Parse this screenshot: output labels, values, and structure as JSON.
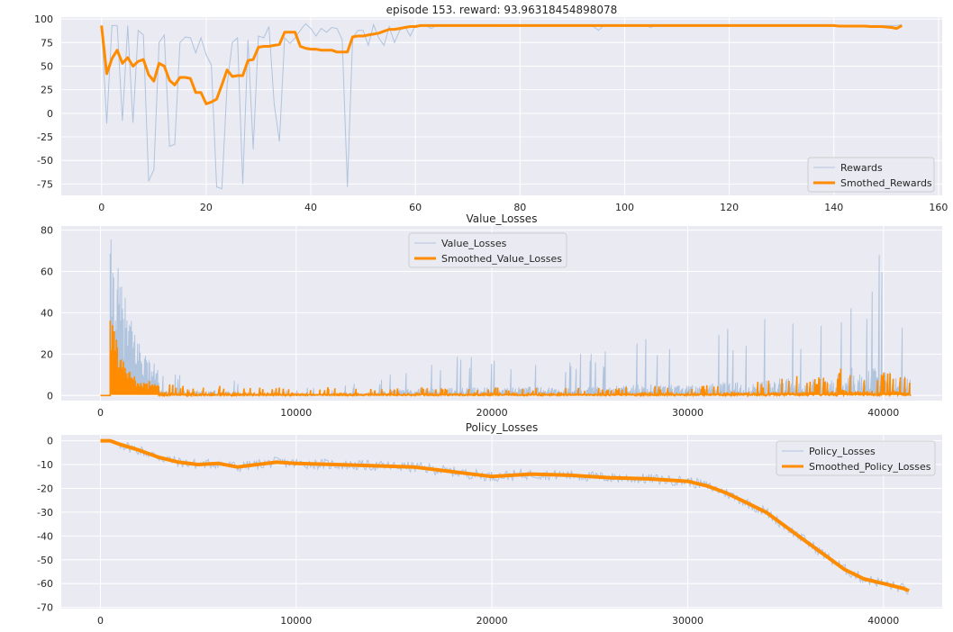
{
  "colors": {
    "axes_bg": "#eaeaf2",
    "grid": "#ffffff",
    "raw_series": "#b0c4de",
    "smoothed_series": "#ff8c00",
    "text": "#262626"
  },
  "chart_data": [
    {
      "type": "line",
      "title": "episode 153. reward: 93.96318454898078",
      "xlabel": "",
      "ylabel": "",
      "xlim": [
        -7.7,
        160.7
      ],
      "ylim": [
        -87,
        102
      ],
      "xticks": [
        0,
        20,
        40,
        60,
        80,
        100,
        120,
        140,
        160
      ],
      "yticks": [
        -75,
        -50,
        -25,
        0,
        25,
        50,
        75,
        100
      ],
      "grid": true,
      "legend": "bottom-right",
      "series": [
        {
          "name": "Rewards",
          "style": "raw",
          "x": [
            0,
            1,
            2,
            3,
            4,
            5,
            6,
            7,
            8,
            9,
            10,
            11,
            12,
            13,
            14,
            15,
            16,
            17,
            18,
            19,
            20,
            21,
            22,
            23,
            24,
            25,
            26,
            27,
            28,
            29,
            30,
            31,
            32,
            33,
            34,
            35,
            36,
            37,
            38,
            39,
            40,
            41,
            42,
            43,
            44,
            45,
            46,
            47,
            48,
            49,
            50,
            51,
            52,
            53,
            54,
            55,
            56,
            57,
            58,
            59,
            60,
            61,
            62,
            63,
            64,
            65,
            66,
            67,
            68,
            69,
            70,
            71,
            72,
            73,
            74,
            75,
            76,
            77,
            78,
            79,
            80,
            81,
            82,
            83,
            84,
            85,
            86,
            87,
            88,
            89,
            90,
            91,
            92,
            93,
            94,
            95,
            96,
            97,
            98,
            99,
            100,
            101,
            102,
            103,
            104,
            105,
            106,
            107,
            108,
            109,
            110,
            111,
            112,
            113,
            114,
            115,
            116,
            117,
            118,
            119,
            120,
            121,
            122,
            123,
            124,
            125,
            126,
            127,
            128,
            129,
            130,
            131,
            132,
            133,
            134,
            135,
            136,
            137,
            138,
            139,
            140,
            141,
            142,
            143,
            144,
            145,
            146,
            147,
            148,
            149,
            150,
            151,
            152,
            153
          ],
          "y": [
            93,
            -11,
            93,
            93,
            -8,
            93,
            -10,
            88,
            83,
            -72,
            -60,
            75,
            83,
            -35,
            -33,
            75,
            81,
            80,
            64,
            80,
            62,
            51,
            -78,
            -80,
            30,
            75,
            80,
            -75,
            78,
            -38,
            82,
            80,
            92,
            10,
            -30,
            80,
            74,
            80,
            88,
            95,
            90,
            82,
            90,
            86,
            91,
            90,
            78,
            -78,
            80,
            88,
            88,
            72,
            94,
            80,
            72,
            92,
            75,
            88,
            92,
            82,
            93,
            93,
            93,
            90,
            93,
            93,
            93,
            93,
            93,
            93,
            93,
            93,
            93,
            93,
            93,
            93,
            93,
            92,
            93,
            93,
            93,
            93,
            93,
            93,
            93,
            93,
            93,
            93,
            93,
            93,
            93,
            93,
            93,
            93,
            92,
            88,
            93,
            93,
            93,
            93,
            93,
            93,
            93,
            93,
            93,
            91,
            93,
            93,
            93,
            93,
            93,
            93,
            93,
            93,
            93,
            93,
            93,
            93,
            93,
            93,
            93,
            93,
            93,
            93,
            93,
            93,
            93,
            93,
            93,
            93,
            93,
            93,
            93,
            93,
            93,
            93,
            93,
            93,
            93,
            93,
            93,
            93,
            93,
            93,
            93,
            93,
            93,
            93,
            93,
            93,
            93,
            93,
            93,
            94
          ]
        },
        {
          "name": "Smothed_Rewards",
          "style": "smoothed",
          "x": [
            0,
            1,
            2,
            3,
            4,
            5,
            6,
            7,
            8,
            9,
            10,
            11,
            12,
            13,
            14,
            15,
            16,
            17,
            18,
            19,
            20,
            21,
            22,
            23,
            24,
            25,
            26,
            27,
            28,
            29,
            30,
            31,
            32,
            33,
            34,
            35,
            36,
            37,
            38,
            39,
            40,
            41,
            42,
            43,
            44,
            45,
            46,
            47,
            48,
            49,
            50,
            51,
            52,
            53,
            54,
            55,
            56,
            57,
            58,
            59,
            60,
            61,
            62,
            63,
            64,
            65,
            66,
            67,
            68,
            69,
            70,
            71,
            72,
            73,
            74,
            75,
            76,
            77,
            78,
            79,
            80,
            81,
            82,
            83,
            84,
            85,
            86,
            87,
            88,
            89,
            90,
            91,
            92,
            93,
            94,
            95,
            96,
            97,
            98,
            99,
            100,
            101,
            102,
            103,
            104,
            105,
            106,
            107,
            108,
            109,
            110,
            111,
            112,
            113,
            114,
            115,
            116,
            117,
            118,
            119,
            120,
            121,
            122,
            123,
            124,
            125,
            126,
            127,
            128,
            129,
            130,
            131,
            132,
            133,
            134,
            135,
            136,
            137,
            138,
            139,
            140,
            141,
            142,
            143,
            144,
            145,
            146,
            147,
            148,
            149,
            150,
            151,
            152,
            153
          ],
          "y": [
            93,
            42,
            58,
            67,
            53,
            59,
            50,
            55,
            57,
            41,
            34,
            53,
            50,
            35,
            30,
            38,
            38,
            37,
            22,
            22,
            10,
            12,
            15,
            30,
            46,
            39,
            40,
            40,
            56,
            57,
            70,
            71,
            71,
            72,
            73,
            86,
            86,
            86,
            71,
            69,
            68,
            68,
            67,
            67,
            67,
            65,
            65,
            65,
            81,
            82,
            82,
            83,
            84,
            85,
            87,
            89,
            89,
            90,
            91,
            92,
            92,
            93,
            93,
            93,
            93,
            93,
            93,
            93,
            93,
            93,
            93,
            93,
            93,
            93,
            93,
            93,
            93,
            93,
            93,
            93,
            93,
            93,
            93,
            93,
            93,
            93,
            93,
            93,
            93,
            93,
            93,
            93,
            93,
            93,
            93,
            93,
            93,
            93,
            93,
            93,
            93,
            93,
            93,
            93,
            93,
            93,
            93,
            93,
            93,
            93,
            93,
            93,
            93,
            93,
            93,
            93,
            93,
            93,
            93,
            93,
            93,
            93,
            93,
            93,
            93,
            93,
            93,
            93,
            93,
            93,
            93,
            93,
            93,
            93,
            93,
            93,
            93,
            93,
            93,
            93,
            93,
            92.5,
            92.5,
            92.5,
            92.5,
            92.5,
            92.5,
            92,
            92,
            92,
            91.5,
            91,
            90,
            93
          ]
        }
      ]
    },
    {
      "type": "line",
      "title": "Value_Losses",
      "xlabel": "",
      "ylabel": "",
      "xlim": [
        -2000,
        43000
      ],
      "ylim": [
        -2.5,
        82
      ],
      "xticks": [
        0,
        10000,
        20000,
        30000,
        40000
      ],
      "yticks": [
        0,
        20,
        40,
        60,
        80
      ],
      "grid": true,
      "legend": "upper center",
      "series": [
        {
          "name": "Value_Losses",
          "style": "raw-envelope",
          "x": [
            0,
            400,
            500,
            1000,
            1500,
            2000,
            2500,
            3000,
            3500,
            4000,
            5000,
            6000,
            6500,
            7000,
            8000,
            10000,
            12000,
            14000,
            15000,
            16000,
            18000,
            20000,
            22000,
            24000,
            26000,
            27000,
            28000,
            30000,
            31000,
            32000,
            33000,
            34000,
            35000,
            36000,
            37000,
            38000,
            38500,
            39000,
            39500,
            40000,
            40500,
            41000,
            41400
          ],
          "y": [
            0,
            0,
            78,
            58,
            40,
            28,
            18,
            14,
            11,
            13,
            15,
            14,
            11,
            6,
            4,
            4,
            4,
            8,
            14,
            18,
            20,
            20,
            22,
            20,
            22,
            26,
            28,
            28,
            30,
            34,
            36,
            40,
            42,
            40,
            44,
            56,
            72,
            66,
            66,
            74,
            68,
            50,
            40
          ]
        },
        {
          "name": "Smoothed_Value_Losses",
          "style": "smoothed-envelope",
          "x": [
            0,
            400,
            500,
            800,
            1000,
            1500,
            2000,
            3000,
            5000,
            10000,
            15000,
            20000,
            25000,
            30000,
            32000,
            34000,
            35000,
            36000,
            37000,
            38000,
            39000,
            40000,
            41000,
            41400
          ],
          "y": [
            0,
            0,
            38,
            30,
            20,
            12,
            8,
            6,
            5,
            4,
            4,
            4,
            4,
            5,
            6,
            7,
            10,
            9,
            10,
            14,
            11,
            12,
            10,
            7
          ]
        }
      ]
    },
    {
      "type": "line",
      "title": "Policy_Losses",
      "xlabel": "",
      "ylabel": "",
      "xlim": [
        -2000,
        43000
      ],
      "ylim": [
        -70.5,
        2.5
      ],
      "xticks": [
        0,
        10000,
        20000,
        30000,
        40000
      ],
      "yticks": [
        0,
        -10,
        -20,
        -30,
        -40,
        -50,
        -60,
        -70
      ],
      "grid": true,
      "legend": "top-right",
      "series": [
        {
          "name": "Policy_Losses",
          "style": "raw",
          "x": [
            0,
            500,
            1000,
            2000,
            3000,
            4000,
            5000,
            6000,
            7000,
            8000,
            9000,
            10000,
            12000,
            14000,
            16000,
            18000,
            20000,
            22000,
            24000,
            26000,
            28000,
            30000,
            31000,
            32000,
            33000,
            34000,
            35000,
            36000,
            37000,
            38000,
            39000,
            40000,
            41000,
            41300
          ],
          "y": [
            0,
            0,
            -1.5,
            -4,
            -7,
            -9,
            -10,
            -9.5,
            -11,
            -10,
            -9,
            -9.5,
            -10,
            -10.5,
            -11,
            -13,
            -15,
            -14,
            -14.5,
            -15.5,
            -16,
            -17,
            -19,
            -22,
            -26,
            -30,
            -36,
            -42,
            -48,
            -54,
            -58,
            -60,
            -62,
            -63
          ]
        },
        {
          "name": "Smoothed_Policy_Losses",
          "style": "smoothed",
          "x": [
            0,
            500,
            1000,
            2000,
            3000,
            4000,
            5000,
            6000,
            7000,
            8000,
            9000,
            10000,
            12000,
            14000,
            16000,
            18000,
            20000,
            22000,
            24000,
            26000,
            28000,
            30000,
            31000,
            32000,
            33000,
            34000,
            35000,
            36000,
            37000,
            38000,
            39000,
            40000,
            41000,
            41300
          ],
          "y": [
            0,
            0,
            -1.5,
            -4,
            -7,
            -9,
            -10,
            -9.5,
            -11,
            -10,
            -9,
            -9.5,
            -10,
            -10.5,
            -11,
            -13,
            -15,
            -14,
            -14.5,
            -15.5,
            -16,
            -17,
            -19,
            -22,
            -26,
            -30,
            -36,
            -42,
            -48,
            -54,
            -58,
            -60,
            -62,
            -63
          ]
        }
      ]
    }
  ]
}
